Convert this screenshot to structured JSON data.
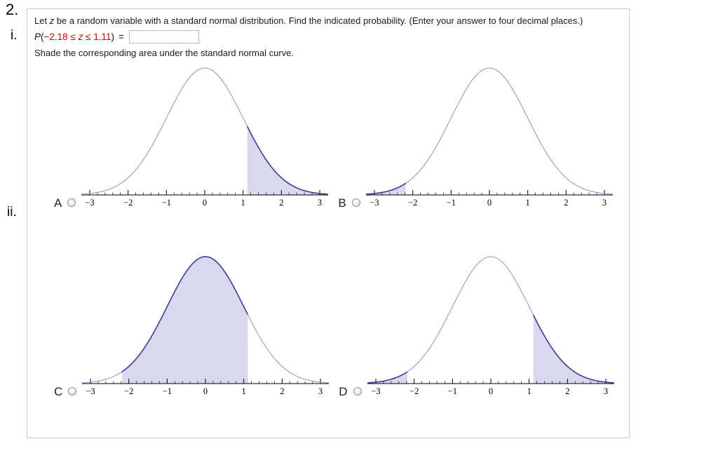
{
  "page": {
    "problem_number": "2.",
    "part_i_label": "i.",
    "part_ii_label": "ii."
  },
  "question": {
    "prompt_pre": "Let ",
    "prompt_var": "z",
    "prompt_post": " be a random variable with a standard normal distribution. Find the indicated probability. (Enter your answer to four decimal places.)",
    "expression": {
      "p": "P",
      "open": "(",
      "red_left": "−2.18 ≤ ",
      "red_var": "z",
      "red_right": " ≤ 1.11",
      "close": ")",
      "equals": "=",
      "answer_value": ""
    },
    "shade_instruction": "Shade the corresponding area under the standard normal curve."
  },
  "chart_data": [
    {
      "label": "A",
      "type": "area",
      "curve": "standard-normal-pdf",
      "x_range": [
        -3.22,
        3.22
      ],
      "tick_values": [
        -3,
        -2,
        -1,
        0,
        1,
        2,
        3
      ],
      "tick_labels": [
        "−3",
        "−2",
        "−1",
        "0",
        "1",
        "2",
        "3"
      ],
      "shaded_intervals": [
        [
          1.11,
          3.22
        ]
      ],
      "shaded_region": "right tail, z ≥ 1.11"
    },
    {
      "label": "B",
      "type": "area",
      "curve": "standard-normal-pdf",
      "x_range": [
        -3.22,
        3.22
      ],
      "tick_values": [
        -3,
        -2,
        -1,
        0,
        1,
        2,
        3
      ],
      "tick_labels": [
        "−3",
        "−2",
        "−1",
        "0",
        "1",
        "2",
        "3"
      ],
      "shaded_intervals": [
        [
          -3.22,
          -2.18
        ]
      ],
      "shaded_region": "left tail, z ≤ −2.18"
    },
    {
      "label": "C",
      "type": "area",
      "curve": "standard-normal-pdf",
      "x_range": [
        -3.22,
        3.22
      ],
      "tick_values": [
        -3,
        -2,
        -1,
        0,
        1,
        2,
        3
      ],
      "tick_labels": [
        "−3",
        "−2",
        "−1",
        "0",
        "1",
        "2",
        "3"
      ],
      "shaded_intervals": [
        [
          -2.18,
          1.11
        ]
      ],
      "shaded_region": "middle, −2.18 ≤ z ≤ 1.11"
    },
    {
      "label": "D",
      "type": "area",
      "curve": "standard-normal-pdf",
      "x_range": [
        -3.22,
        3.22
      ],
      "tick_values": [
        -3,
        -2,
        -1,
        0,
        1,
        2,
        3
      ],
      "tick_labels": [
        "−3",
        "−2",
        "−1",
        "0",
        "1",
        "2",
        "3"
      ],
      "shaded_intervals": [
        [
          -3.22,
          -2.18
        ],
        [
          1.11,
          3.22
        ]
      ],
      "shaded_region": "both tails, z ≤ −2.18 and z ≥ 1.11"
    }
  ],
  "colors": {
    "curve_stroke": "#8f8fc1",
    "shaded_curve_stroke": "#3c3c96",
    "shade_fill": "#d9d8ec",
    "expression_red": "#cc0000",
    "box_border": "#c9c9c9",
    "axis": "#000000"
  }
}
